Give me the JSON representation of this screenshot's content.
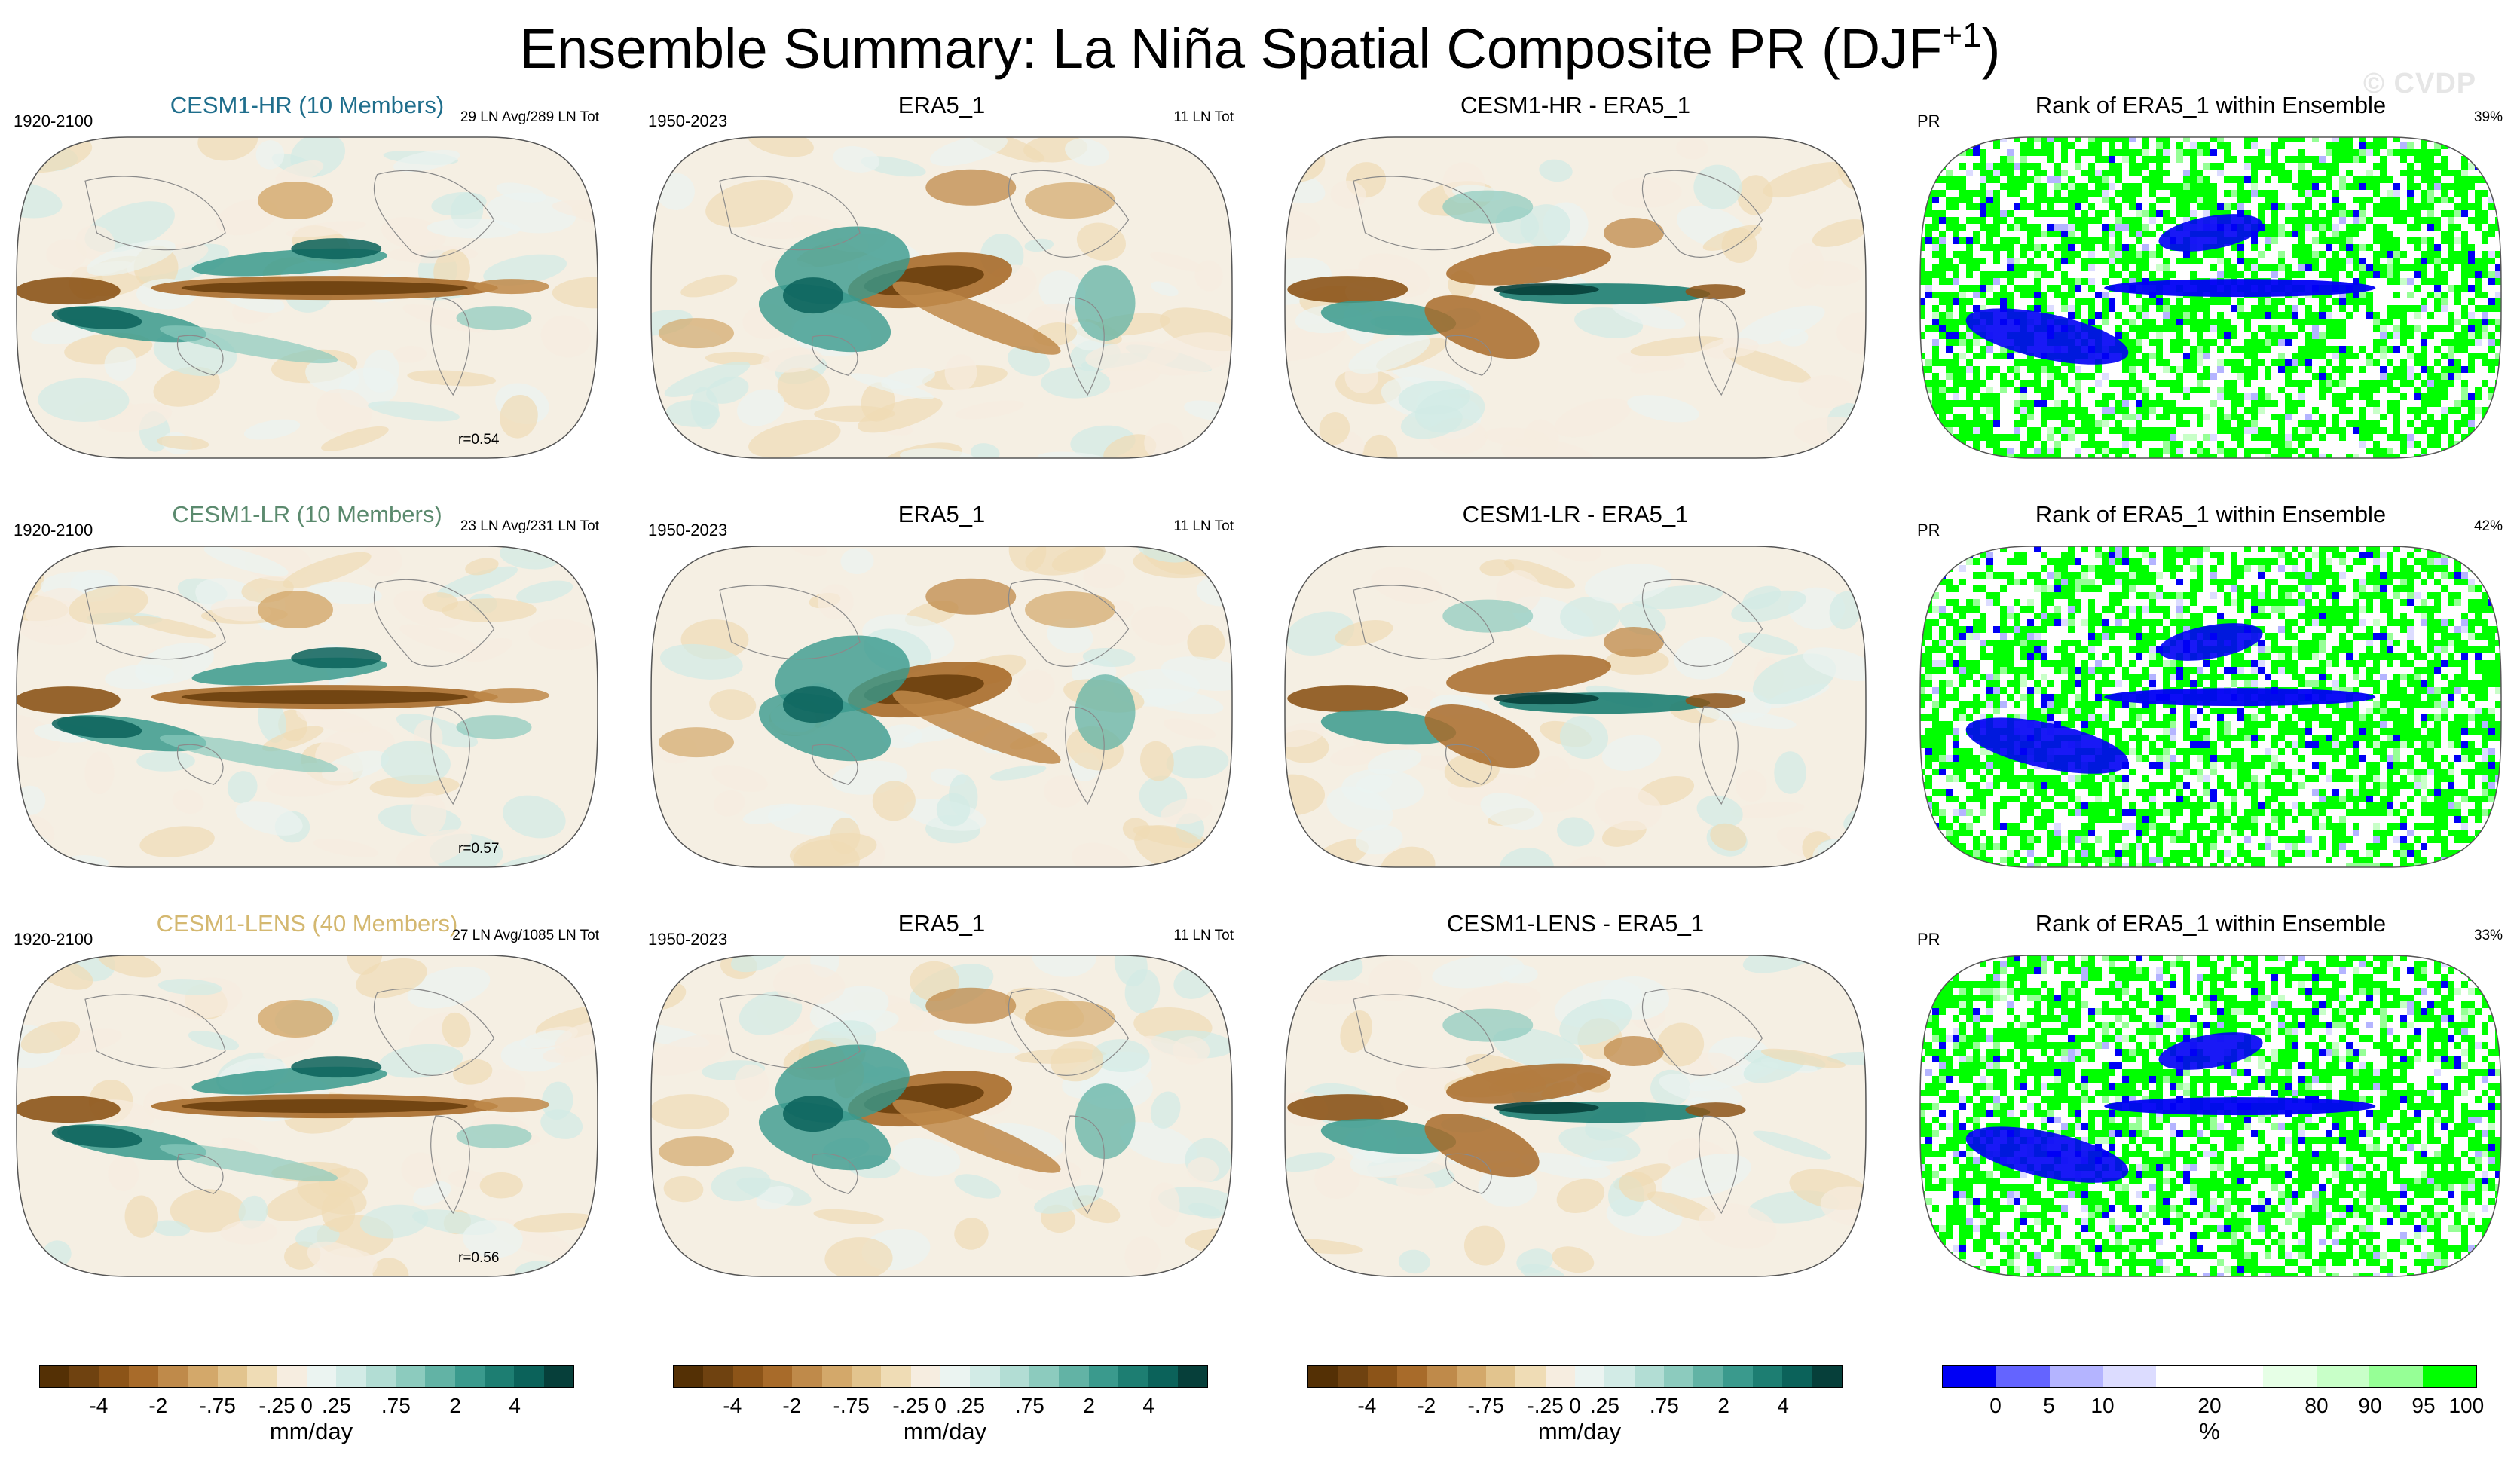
{
  "figure": {
    "title_main": "Ensemble Summary: La Niña Spatial Composite PR (DJF",
    "title_sup": "+1",
    "title_end": ")",
    "watermark": "© CVDP"
  },
  "panels": [
    {
      "id": "r0c0",
      "kind": "model",
      "title": "CESM1-HR (10 Members)",
      "title_color": "#1f6e8c",
      "left": "1920-2100",
      "right": "29 LN Avg/289 LN Tot",
      "r": "r=0.54"
    },
    {
      "id": "r0c1",
      "kind": "obs",
      "title": "ERA5_1",
      "title_color": "#000000",
      "left": "1950-2023",
      "right": "11 LN Tot",
      "r": ""
    },
    {
      "id": "r0c2",
      "kind": "diff",
      "title": "CESM1-HR - ERA5_1",
      "title_color": "#000000",
      "left": "",
      "right": "",
      "r": ""
    },
    {
      "id": "r0c3",
      "kind": "rank",
      "title": "Rank of ERA5_1 within Ensemble",
      "title_color": "#000000",
      "left": "PR",
      "right": "39%",
      "r": ""
    },
    {
      "id": "r1c0",
      "kind": "model",
      "title": "CESM1-LR (10 Members)",
      "title_color": "#5b8a6e",
      "left": "1920-2100",
      "right": "23 LN Avg/231 LN Tot",
      "r": "r=0.57"
    },
    {
      "id": "r1c1",
      "kind": "obs",
      "title": "ERA5_1",
      "title_color": "#000000",
      "left": "1950-2023",
      "right": "11 LN Tot",
      "r": ""
    },
    {
      "id": "r1c2",
      "kind": "diff",
      "title": "CESM1-LR - ERA5_1",
      "title_color": "#000000",
      "left": "",
      "right": "",
      "r": ""
    },
    {
      "id": "r1c3",
      "kind": "rank",
      "title": "Rank of ERA5_1 within Ensemble",
      "title_color": "#000000",
      "left": "PR",
      "right": "42%",
      "r": ""
    },
    {
      "id": "r2c0",
      "kind": "model",
      "title": "CESM1-LENS (40 Members)",
      "title_color": "#d4b870",
      "left": "1920-2100",
      "right": "27 LN Avg/1085 LN Tot",
      "r": "r=0.56"
    },
    {
      "id": "r2c1",
      "kind": "obs",
      "title": "ERA5_1",
      "title_color": "#000000",
      "left": "1950-2023",
      "right": "11 LN Tot",
      "r": ""
    },
    {
      "id": "r2c2",
      "kind": "diff",
      "title": "CESM1-LENS - ERA5_1",
      "title_color": "#000000",
      "left": "",
      "right": "",
      "r": ""
    },
    {
      "id": "r2c3",
      "kind": "rank",
      "title": "Rank of ERA5_1 within Ensemble",
      "title_color": "#000000",
      "left": "PR",
      "right": "33%",
      "r": ""
    }
  ],
  "colorbars": [
    {
      "id": "cb0",
      "unit": "mm/day",
      "ticks": [
        "-4",
        "-2",
        "-.75",
        "-.25",
        "0",
        ".25",
        ".75",
        "2",
        "4"
      ]
    },
    {
      "id": "cb1",
      "unit": "mm/day",
      "ticks": [
        "-4",
        "-2",
        "-.75",
        "-.25",
        "0",
        ".25",
        ".75",
        "2",
        "4"
      ]
    },
    {
      "id": "cb2",
      "unit": "mm/day",
      "ticks": [
        "-4",
        "-2",
        "-.75",
        "-.25",
        "0",
        ".25",
        ".75",
        "2",
        "4"
      ]
    },
    {
      "id": "cb3",
      "unit": "%",
      "ticks": [
        "0",
        "5",
        "10",
        "20",
        "80",
        "90",
        "95",
        "100"
      ]
    }
  ],
  "palettes": {
    "precip": [
      "#543005",
      "#6f4210",
      "#8c5418",
      "#a86b2a",
      "#bf8a4a",
      "#d3a86a",
      "#e2c48e",
      "#efdcb5",
      "#f6ede0",
      "#ebf4f1",
      "#d2ebe6",
      "#b2ddd4",
      "#8ccbbe",
      "#62b3a5",
      "#3a9a8d",
      "#1d7e72",
      "#0b625a",
      "#063f3a"
    ],
    "rank": [
      "#0000f5",
      "#6464ff",
      "#b4b4ff",
      "#dcdcff",
      "#ffffff",
      "#ffffff",
      "#e6ffe6",
      "#c8ffc8",
      "#96ff96",
      "#00ff00"
    ]
  },
  "chart_data": [
    {
      "type": "heatmap",
      "title": "CESM1-HR (10 Members)",
      "units": "mm/day",
      "projection": "Robinson (global)",
      "levels": [
        -4,
        -2,
        -0.75,
        -0.25,
        0,
        0.25,
        0.75,
        2,
        4
      ],
      "r": 0.54,
      "period": "1920-2100",
      "events": "29 LN Avg/289 LN Tot"
    },
    {
      "type": "heatmap",
      "title": "ERA5_1",
      "units": "mm/day",
      "projection": "Robinson (global)",
      "levels": [
        -4,
        -2,
        -0.75,
        -0.25,
        0,
        0.25,
        0.75,
        2,
        4
      ],
      "period": "1950-2023",
      "events": "11 LN Tot"
    },
    {
      "type": "heatmap",
      "title": "CESM1-HR - ERA5_1",
      "units": "mm/day",
      "projection": "Robinson (global)",
      "levels": [
        -4,
        -2,
        -0.75,
        -0.25,
        0,
        0.25,
        0.75,
        2,
        4
      ]
    },
    {
      "type": "heatmap",
      "title": "Rank of ERA5_1 within Ensemble",
      "units": "%",
      "projection": "Robinson (global)",
      "levels": [
        0,
        5,
        10,
        20,
        80,
        90,
        95,
        100
      ],
      "value_label": "39%"
    },
    {
      "type": "heatmap",
      "title": "CESM1-LR (10 Members)",
      "units": "mm/day",
      "projection": "Robinson (global)",
      "levels": [
        -4,
        -2,
        -0.75,
        -0.25,
        0,
        0.25,
        0.75,
        2,
        4
      ],
      "r": 0.57,
      "period": "1920-2100",
      "events": "23 LN Avg/231 LN Tot"
    },
    {
      "type": "heatmap",
      "title": "ERA5_1",
      "units": "mm/day",
      "projection": "Robinson (global)",
      "levels": [
        -4,
        -2,
        -0.75,
        -0.25,
        0,
        0.25,
        0.75,
        2,
        4
      ],
      "period": "1950-2023",
      "events": "11 LN Tot"
    },
    {
      "type": "heatmap",
      "title": "CESM1-LR - ERA5_1",
      "units": "mm/day",
      "projection": "Robinson (global)",
      "levels": [
        -4,
        -2,
        -0.75,
        -0.25,
        0,
        0.25,
        0.75,
        2,
        4
      ]
    },
    {
      "type": "heatmap",
      "title": "Rank of ERA5_1 within Ensemble",
      "units": "%",
      "projection": "Robinson (global)",
      "levels": [
        0,
        5,
        10,
        20,
        80,
        90,
        95,
        100
      ],
      "value_label": "42%"
    },
    {
      "type": "heatmap",
      "title": "CESM1-LENS (40 Members)",
      "units": "mm/day",
      "projection": "Robinson (global)",
      "levels": [
        -4,
        -2,
        -0.75,
        -0.25,
        0,
        0.25,
        0.75,
        2,
        4
      ],
      "r": 0.56,
      "period": "1920-2100",
      "events": "27 LN Avg/1085 LN Tot"
    },
    {
      "type": "heatmap",
      "title": "ERA5_1",
      "units": "mm/day",
      "projection": "Robinson (global)",
      "levels": [
        -4,
        -2,
        -0.75,
        -0.25,
        0,
        0.25,
        0.75,
        2,
        4
      ],
      "period": "1950-2023",
      "events": "11 LN Tot"
    },
    {
      "type": "heatmap",
      "title": "CESM1-LENS - ERA5_1",
      "units": "mm/day",
      "projection": "Robinson (global)",
      "levels": [
        -4,
        -2,
        -0.75,
        -0.25,
        0,
        0.25,
        0.75,
        2,
        4
      ]
    },
    {
      "type": "heatmap",
      "title": "Rank of ERA5_1 within Ensemble",
      "units": "%",
      "projection": "Robinson (global)",
      "levels": [
        0,
        5,
        10,
        20,
        80,
        90,
        95,
        100
      ],
      "value_label": "33%"
    }
  ]
}
